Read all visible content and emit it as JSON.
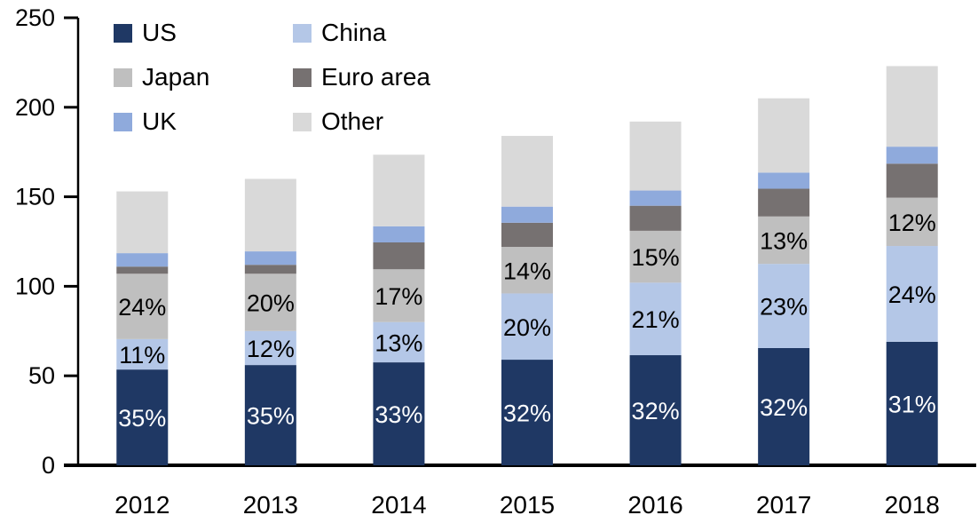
{
  "chart_data": {
    "type": "bar",
    "stacked": true,
    "title": "",
    "xlabel": "",
    "ylabel": "",
    "categories": [
      "2012",
      "2013",
      "2014",
      "2015",
      "2016",
      "2017",
      "2018"
    ],
    "series": [
      {
        "name": "US",
        "color": "#1F3864",
        "label_color": "#FFFFFF",
        "values": [
          53.5,
          56,
          57.5,
          59,
          61.5,
          65.5,
          69
        ],
        "labels": [
          "35%",
          "35%",
          "33%",
          "32%",
          "32%",
          "32%",
          "31%"
        ]
      },
      {
        "name": "China",
        "color": "#B4C7E7",
        "label_color": "#000000",
        "values": [
          17,
          19,
          22.5,
          37,
          40.5,
          47,
          53.5
        ],
        "labels": [
          "11%",
          "12%",
          "13%",
          "20%",
          "21%",
          "23%",
          "24%"
        ]
      },
      {
        "name": "Japan",
        "color": "#BFBFBF",
        "label_color": "#000000",
        "values": [
          36.5,
          32,
          29.5,
          26,
          29,
          26.5,
          27
        ],
        "labels": [
          "24%",
          "20%",
          "17%",
          "14%",
          "15%",
          "13%",
          "12%"
        ]
      },
      {
        "name": "Euro area",
        "color": "#767171",
        "label_color": "#000000",
        "values": [
          4,
          5,
          15,
          13.5,
          14,
          15.5,
          19
        ],
        "labels": []
      },
      {
        "name": "UK",
        "color": "#8FAADC",
        "label_color": "#000000",
        "values": [
          7.5,
          7.5,
          9,
          9,
          8.5,
          9,
          9.5
        ],
        "labels": []
      },
      {
        "name": "Other",
        "color": "#D9D9D9",
        "label_color": "#000000",
        "values": [
          34.5,
          40.5,
          40,
          39.5,
          38.5,
          41.5,
          45
        ],
        "labels": []
      }
    ],
    "totals": [
      153,
      160,
      173.5,
      184,
      192,
      205,
      223
    ],
    "ylim": [
      0,
      250
    ],
    "yticks": [
      "0",
      "50",
      "100",
      "150",
      "200",
      "250"
    ],
    "grid": false,
    "legend_position": "top-left",
    "axis_color": "#000000",
    "text_color": "#000000"
  }
}
